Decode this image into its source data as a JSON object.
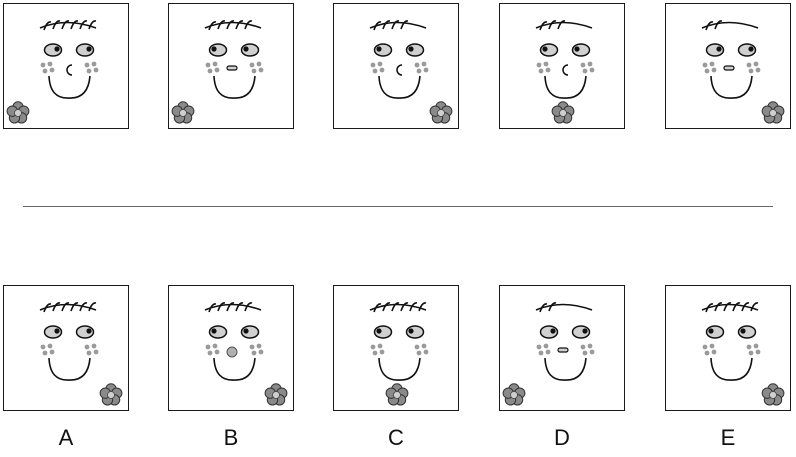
{
  "accent_colors": {
    "cheek": "#9a9a9a",
    "eye": "#d0d0d0",
    "flower": "#8a8a8a",
    "line": "#111111"
  },
  "sequence": [
    {
      "label": "",
      "hair": 6,
      "nose": "c",
      "pupils": "right",
      "flower": "bottom-left"
    },
    {
      "label": "",
      "hair": 5,
      "nose": "dash",
      "pupils": "left",
      "flower": "bottom-left"
    },
    {
      "label": "",
      "hair": 4,
      "nose": "c",
      "pupils": "left",
      "flower": "bottom-right"
    },
    {
      "label": "",
      "hair": 3,
      "nose": "c",
      "pupils": "left",
      "flower": "bottom-center"
    },
    {
      "label": "",
      "hair": 2,
      "nose": "dash",
      "pupils": "right",
      "flower": "bottom-right"
    }
  ],
  "options": [
    {
      "label": "A",
      "hair": 6,
      "nose": "none",
      "pupils": "right",
      "flower": "bottom-right"
    },
    {
      "label": "B",
      "hair": 5,
      "nose": "dot",
      "pupils": "left",
      "flower": "bottom-right"
    },
    {
      "label": "C",
      "hair": 6,
      "nose": "none",
      "pupils": "left",
      "flower": "bottom-center"
    },
    {
      "label": "D",
      "hair": 2,
      "nose": "dash",
      "pupils": "right",
      "flower": "bottom-left"
    },
    {
      "label": "E",
      "hair": 6,
      "nose": "none",
      "pupils": "left",
      "flower": "bottom-right"
    }
  ]
}
